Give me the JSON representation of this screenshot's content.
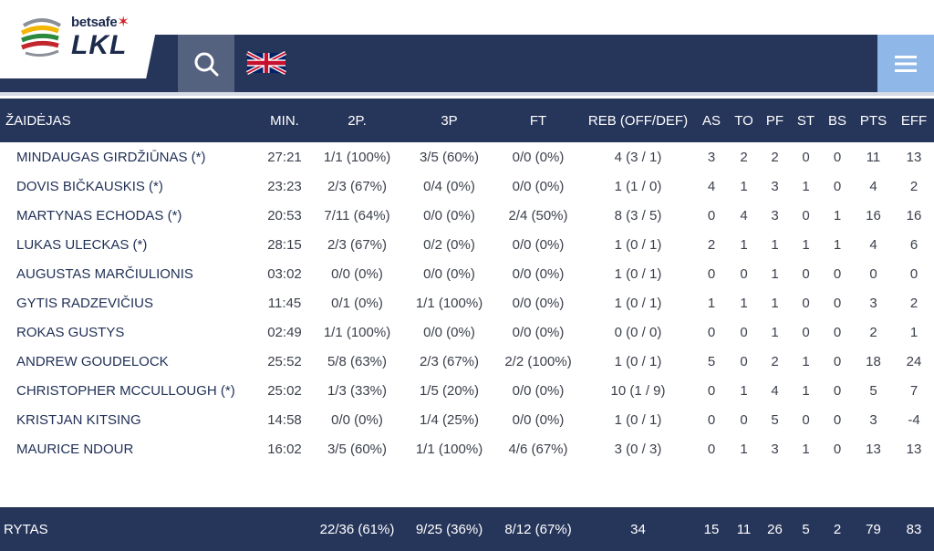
{
  "brand": {
    "sponsor": "betsafe",
    "league": "LKL"
  },
  "colors": {
    "navbar": "#26355a",
    "search_bg": "#55627f",
    "menu_bg": "#8fb7e8",
    "name_text": "#1f2f55"
  },
  "icons": {
    "search": "search-icon",
    "language": "uk-flag-icon",
    "menu": "hamburger-menu-icon"
  },
  "table": {
    "headers": [
      "ŽAIDĖJAS",
      "MIN.",
      "2P.",
      "3P",
      "FT",
      "REB (OFF/DEF)",
      "AS",
      "TO",
      "PF",
      "ST",
      "BS",
      "PTS",
      "EFF"
    ],
    "rows": [
      [
        "MINDAUGAS GIRDŽIŪNAS (*)",
        "27:21",
        "1/1 (100%)",
        "3/5 (60%)",
        "0/0 (0%)",
        "4 (3 / 1)",
        "3",
        "2",
        "2",
        "0",
        "0",
        "11",
        "13"
      ],
      [
        "DOVIS BIČKAUSKIS (*)",
        "23:23",
        "2/3 (67%)",
        "0/4 (0%)",
        "0/0 (0%)",
        "1 (1 / 0)",
        "4",
        "1",
        "3",
        "1",
        "0",
        "4",
        "2"
      ],
      [
        "MARTYNAS ECHODAS (*)",
        "20:53",
        "7/11 (64%)",
        "0/0 (0%)",
        "2/4 (50%)",
        "8 (3 / 5)",
        "0",
        "4",
        "3",
        "0",
        "1",
        "16",
        "16"
      ],
      [
        "LUKAS ULECKAS (*)",
        "28:15",
        "2/3 (67%)",
        "0/2 (0%)",
        "0/0 (0%)",
        "1 (0 / 1)",
        "2",
        "1",
        "1",
        "1",
        "1",
        "4",
        "6"
      ],
      [
        "AUGUSTAS MARČIULIONIS",
        "03:02",
        "0/0 (0%)",
        "0/0 (0%)",
        "0/0 (0%)",
        "1 (0 / 1)",
        "0",
        "0",
        "1",
        "0",
        "0",
        "0",
        "0"
      ],
      [
        "GYTIS RADZEVIČIUS",
        "11:45",
        "0/1 (0%)",
        "1/1 (100%)",
        "0/0 (0%)",
        "1 (0 / 1)",
        "1",
        "1",
        "1",
        "0",
        "0",
        "3",
        "2"
      ],
      [
        "ROKAS GUSTYS",
        "02:49",
        "1/1 (100%)",
        "0/0 (0%)",
        "0/0 (0%)",
        "0 (0 / 0)",
        "0",
        "0",
        "1",
        "0",
        "0",
        "2",
        "1"
      ],
      [
        "ANDREW GOUDELOCK",
        "25:52",
        "5/8 (63%)",
        "2/3 (67%)",
        "2/2 (100%)",
        "1 (0 / 1)",
        "5",
        "0",
        "2",
        "1",
        "0",
        "18",
        "24"
      ],
      [
        "CHRISTOPHER MCCULLOUGH (*)",
        "25:02",
        "1/3 (33%)",
        "1/5 (20%)",
        "0/0 (0%)",
        "10 (1 / 9)",
        "0",
        "1",
        "4",
        "1",
        "0",
        "5",
        "7"
      ],
      [
        "KRISTJAN KITSING",
        "14:58",
        "0/0 (0%)",
        "1/4 (25%)",
        "0/0 (0%)",
        "1 (0 / 1)",
        "0",
        "0",
        "5",
        "0",
        "0",
        "3",
        "-4"
      ],
      [
        "MAURICE NDOUR",
        "16:02",
        "3/5 (60%)",
        "1/1 (100%)",
        "4/6 (67%)",
        "3 (0 / 3)",
        "0",
        "1",
        "3",
        "1",
        "0",
        "13",
        "13"
      ]
    ],
    "totals": [
      "RYTAS",
      "",
      "22/36 (61%)",
      "9/25 (36%)",
      "8/12 (67%)",
      "34",
      "15",
      "11",
      "26",
      "5",
      "2",
      "79",
      "83"
    ]
  }
}
